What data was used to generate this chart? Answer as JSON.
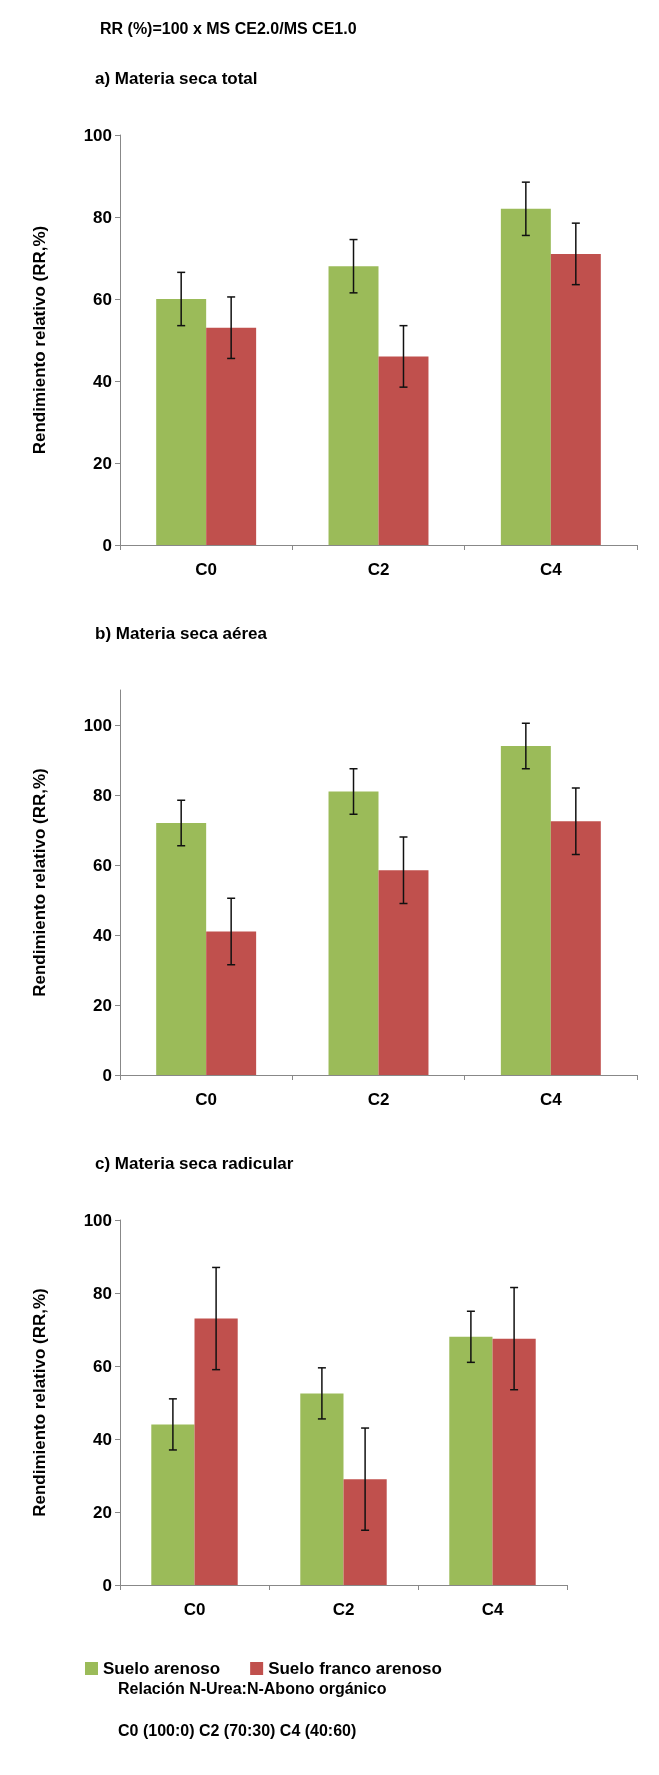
{
  "chart_data": [
    {
      "type": "bar",
      "title": "a) Materia seca total",
      "annotations": [
        "RR (%)=100 x MS CE2.0/MS CE1.0"
      ],
      "ylabel": "Rendimiento relativo (RR,%)",
      "categories": [
        "C0",
        "C2",
        "C4"
      ],
      "ylim": [
        0,
        100
      ],
      "yticks": [
        0,
        20,
        40,
        60,
        80,
        100
      ],
      "grid": false,
      "legend": false,
      "series": [
        {
          "color": "#9bbb59",
          "values": [
            60,
            68,
            82
          ],
          "errors": [
            6.5,
            6.5,
            6.5
          ]
        },
        {
          "color": "#c0504d",
          "values": [
            53,
            46,
            71
          ],
          "errors": [
            7.5,
            7.5,
            7.5
          ]
        }
      ]
    },
    {
      "type": "bar",
      "title": "b) Materia seca aérea",
      "ylabel": "Rendimiento relativo (RR,%)",
      "categories": [
        "C0",
        "C2",
        "C4"
      ],
      "ylim": [
        0,
        110
      ],
      "yticks": [
        0,
        20,
        40,
        60,
        80,
        100
      ],
      "grid": false,
      "legend": false,
      "series": [
        {
          "color": "#9bbb59",
          "values": [
            72,
            81,
            94
          ],
          "errors": [
            6.5,
            6.5,
            6.5
          ]
        },
        {
          "color": "#c0504d",
          "values": [
            41,
            58.5,
            72.5
          ],
          "errors": [
            9.5,
            9.5,
            9.5
          ]
        }
      ]
    },
    {
      "type": "bar",
      "title": "c) Materia seca radicular",
      "ylabel": "Rendimiento relativo (RR,%)",
      "categories": [
        "C0",
        "C2",
        "C4"
      ],
      "ylim": [
        0,
        100
      ],
      "yticks": [
        0,
        20,
        40,
        60,
        80,
        100
      ],
      "grid": false,
      "legend": "bottom",
      "annotations": [
        "Relación N-Urea:N-Abono orgánico",
        "C0 (100:0) C2 (70:30) C4 (40:60)"
      ],
      "series": [
        {
          "name": "Suelo arenoso",
          "color": "#9bbb59",
          "values": [
            44,
            52.5,
            68
          ],
          "errors": [
            7,
            7,
            7
          ]
        },
        {
          "name": "Suelo franco arenoso",
          "color": "#c0504d",
          "values": [
            73,
            29,
            67.5
          ],
          "errors": [
            14,
            14,
            14
          ]
        }
      ]
    }
  ]
}
